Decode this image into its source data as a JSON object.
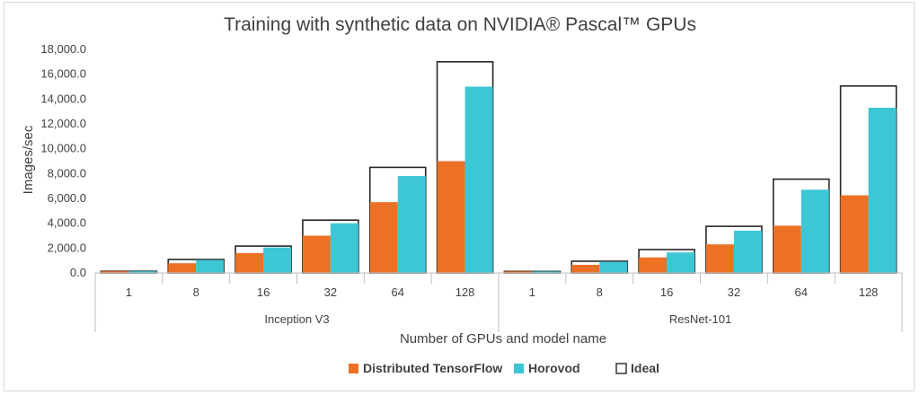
{
  "chart_data": {
    "type": "bar",
    "title": "Training with synthetic data on NVIDIA® Pascal™ GPUs",
    "xlabel": "Number of GPUs and model name",
    "ylabel": "Images/sec",
    "ylim": [
      0,
      18000
    ],
    "y_ticks": [
      "0.0",
      "2,000.0",
      "4,000.0",
      "6,000.0",
      "8,000.0",
      "10,000.0",
      "12,000.0",
      "14,000.0",
      "16,000.0",
      "18,000.0"
    ],
    "y_tick_values": [
      0,
      2000,
      4000,
      6000,
      8000,
      10000,
      12000,
      14000,
      16000,
      18000
    ],
    "groups": [
      {
        "name": "Inception V3",
        "categories": [
          "1",
          "8",
          "16",
          "32",
          "64",
          "128"
        ],
        "series": [
          {
            "name": "Distributed TensorFlow",
            "values": [
              130,
              780,
              1600,
              3000,
              5700,
              9000
            ]
          },
          {
            "name": "Horovod",
            "values": [
              130,
              1050,
              2050,
              4000,
              7800,
              15000
            ]
          },
          {
            "name": "Ideal",
            "values": [
              130,
              1080,
              2160,
              4250,
              8500,
              17000
            ]
          }
        ]
      },
      {
        "name": "ResNet-101",
        "categories": [
          "1",
          "8",
          "16",
          "32",
          "64",
          "128"
        ],
        "series": [
          {
            "name": "Distributed TensorFlow",
            "values": [
              120,
              650,
              1250,
              2300,
              3800,
              6250
            ]
          },
          {
            "name": "Horovod",
            "values": [
              120,
              900,
              1650,
              3400,
              6700,
              13300
            ]
          },
          {
            "name": "Ideal",
            "values": [
              120,
              940,
              1880,
              3750,
              7550,
              15050
            ]
          }
        ]
      }
    ],
    "legend": {
      "position": "bottom",
      "entries": [
        {
          "label": "Distributed TensorFlow",
          "color": "#ed7125"
        },
        {
          "label": "Horovod",
          "color": "#3dc6d4"
        },
        {
          "label": "Ideal",
          "color": "#ffffff",
          "border": "#262626"
        }
      ]
    },
    "grid": false,
    "colors": {
      "tensorflow": "#ed7125",
      "horovod": "#3dc6d4",
      "ideal_outline": "#262626",
      "axis": "#bfbfbf",
      "text": "#404040"
    }
  }
}
